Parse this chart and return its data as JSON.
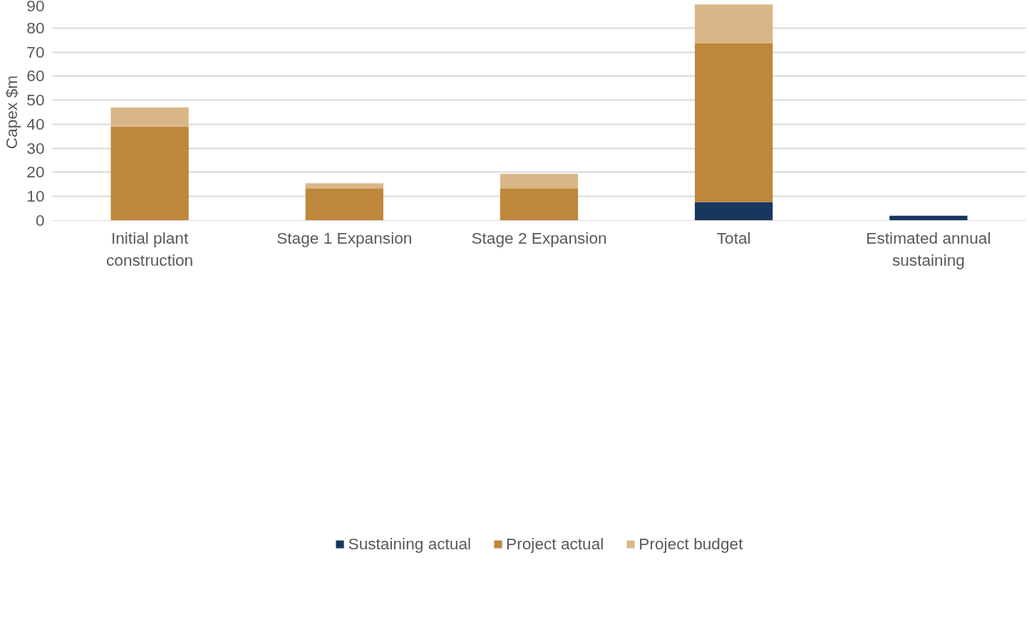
{
  "chart_data": {
    "type": "bar",
    "stacked": true,
    "ylabel": "Capex $m",
    "categories": [
      "Initial plant construction",
      "Stage 1 Expansion",
      "Stage 2 Expansion",
      "Total",
      "Estimated annual sustaining"
    ],
    "series": [
      {
        "name": "Sustaining actual",
        "color": "#17375e",
        "values": [
          null,
          null,
          null,
          7.7,
          2.0
        ]
      },
      {
        "name": "Project actual",
        "color": "#bf873b",
        "values": [
          39.0,
          13.4,
          13.4,
          65.9,
          null
        ]
      },
      {
        "name": "Project budget",
        "color": "#d9b687",
        "values": [
          8.0,
          2.1,
          6.0,
          16.2,
          null
        ]
      }
    ],
    "ylim": [
      0,
      90
    ],
    "yticks": [
      0,
      10,
      20,
      30,
      40,
      50,
      60,
      70,
      80,
      90
    ],
    "grid": "y",
    "legend": "bottom"
  }
}
